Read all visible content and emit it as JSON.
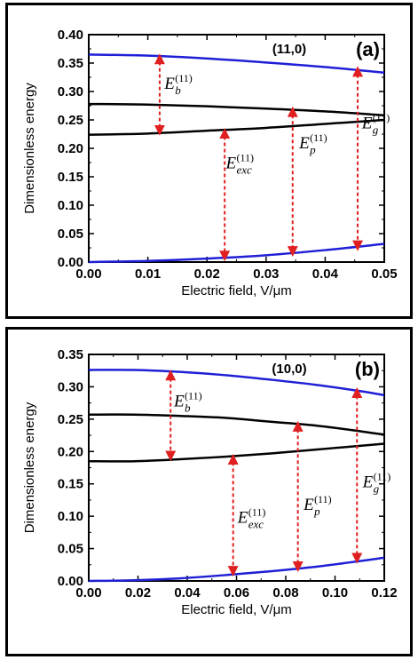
{
  "chart_data": [
    {
      "type": "line",
      "panel_label": "(a)",
      "chirality": "(11,0)",
      "xlabel": "Electric field,  V/μm",
      "ylabel": "Dimensionless energy",
      "xlim": [
        0,
        0.05
      ],
      "ylim": [
        0,
        0.4
      ],
      "xticks": [
        "0.00",
        "0.01",
        "0.02",
        "0.03",
        "0.04",
        "0.05"
      ],
      "yticks": [
        "0.00",
        "0.05",
        "0.10",
        "0.15",
        "0.20",
        "0.25",
        "0.30",
        "0.35",
        "0.40"
      ],
      "grid": false,
      "series": [
        {
          "color": "#1f1fd6",
          "x": [
            0,
            0.01,
            0.02,
            0.03,
            0.04,
            0.05
          ],
          "y": [
            0.365,
            0.363,
            0.358,
            0.351,
            0.343,
            0.333
          ]
        },
        {
          "color": "#000000",
          "x": [
            0,
            0.01,
            0.02,
            0.03,
            0.04,
            0.05
          ],
          "y": [
            0.278,
            0.277,
            0.274,
            0.27,
            0.265,
            0.258
          ]
        },
        {
          "color": "#000000",
          "x": [
            0,
            0.01,
            0.02,
            0.03,
            0.04,
            0.05
          ],
          "y": [
            0.224,
            0.226,
            0.231,
            0.236,
            0.243,
            0.25
          ]
        },
        {
          "color": "#1f1fd6",
          "x": [
            0,
            0.01,
            0.02,
            0.03,
            0.04,
            0.05
          ],
          "y": [
            0.0,
            0.002,
            0.006,
            0.012,
            0.021,
            0.032
          ]
        }
      ],
      "arrows": [
        {
          "x": 0.012,
          "y_from": 0.363,
          "y_to": 0.226
        },
        {
          "x": 0.023,
          "y_from": 0.232,
          "y_to": 0.005
        },
        {
          "x": 0.0345,
          "y_from": 0.27,
          "y_to": 0.013
        },
        {
          "x": 0.0455,
          "y_from": 0.341,
          "y_to": 0.023
        }
      ],
      "annotations": [
        {
          "main": "E",
          "sub": "b",
          "sup": "(11)",
          "x": 0.0128,
          "y": 0.305
        },
        {
          "main": "E",
          "sub": "exc",
          "sup": "(11)",
          "x": 0.0232,
          "y": 0.165
        },
        {
          "main": "E",
          "sub": "p",
          "sup": "(11)",
          "x": 0.0356,
          "y": 0.2
        },
        {
          "main": "E",
          "sub": "g",
          "sup": "(11)",
          "x": 0.0462,
          "y": 0.235
        }
      ]
    },
    {
      "type": "line",
      "panel_label": "(b)",
      "chirality": "(10,0)",
      "xlabel": "Electric field,  V/μm",
      "ylabel": "Dimensionless energy",
      "xlim": [
        0,
        0.13
      ],
      "ylim": [
        0,
        0.35
      ],
      "xticks": [
        "0.00",
        "0.02",
        "0.04",
        "0.06",
        "0.08",
        "0.10",
        "0.12"
      ],
      "yticks": [
        "0.00",
        "0.05",
        "0.10",
        "0.15",
        "0.20",
        "0.25",
        "0.30",
        "0.35"
      ],
      "grid": false,
      "series": [
        {
          "color": "#1f1fd6",
          "x": [
            0,
            0.02,
            0.04,
            0.06,
            0.08,
            0.1,
            0.12,
            0.13
          ],
          "y": [
            0.326,
            0.326,
            0.323,
            0.318,
            0.311,
            0.303,
            0.293,
            0.287
          ]
        },
        {
          "color": "#000000",
          "x": [
            0,
            0.02,
            0.04,
            0.06,
            0.08,
            0.1,
            0.12,
            0.13
          ],
          "y": [
            0.257,
            0.257,
            0.255,
            0.252,
            0.246,
            0.24,
            0.231,
            0.226
          ]
        },
        {
          "color": "#000000",
          "x": [
            0,
            0.02,
            0.04,
            0.06,
            0.08,
            0.1,
            0.12,
            0.13
          ],
          "y": [
            0.185,
            0.185,
            0.188,
            0.192,
            0.197,
            0.203,
            0.209,
            0.212
          ]
        },
        {
          "color": "#1f1fd6",
          "x": [
            0,
            0.02,
            0.04,
            0.06,
            0.08,
            0.1,
            0.12,
            0.13
          ],
          "y": [
            0.0,
            0.001,
            0.004,
            0.009,
            0.015,
            0.022,
            0.031,
            0.036
          ]
        }
      ],
      "arrows": [
        {
          "x": 0.036,
          "y_from": 0.323,
          "y_to": 0.188
        },
        {
          "x": 0.0635,
          "y_from": 0.193,
          "y_to": 0.01
        },
        {
          "x": 0.092,
          "y_from": 0.244,
          "y_to": 0.017
        },
        {
          "x": 0.118,
          "y_from": 0.296,
          "y_to": 0.03
        }
      ],
      "annotations": [
        {
          "main": "E",
          "sub": "b",
          "sup": "(11)",
          "x": 0.0375,
          "y": 0.27
        },
        {
          "main": "E",
          "sub": "exc",
          "sup": "(11)",
          "x": 0.0655,
          "y": 0.09
        },
        {
          "main": "E",
          "sub": "p",
          "sup": "(11)",
          "x": 0.0945,
          "y": 0.11
        },
        {
          "main": "E",
          "sub": "g",
          "sup": "(11)",
          "x": 0.1205,
          "y": 0.145
        }
      ]
    }
  ],
  "colors": {
    "band": "#1f1fd6",
    "level": "#000000",
    "arrow": "#e02020"
  }
}
